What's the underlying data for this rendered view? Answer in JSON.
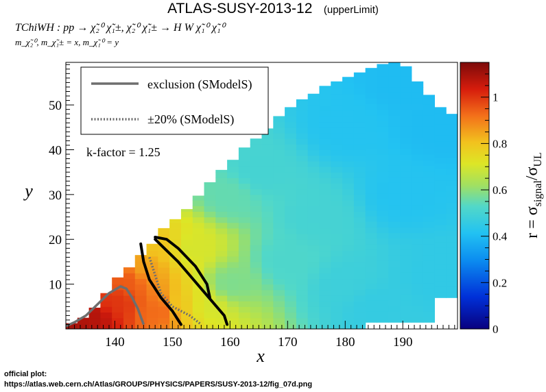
{
  "title": "ATLAS-SUSY-2013-12",
  "subtitle": "(upperLimit)",
  "process": "TChiWH : pp → χ̃₂⁰ χ̃₁±, χ̃₂⁰ χ̃₁± → H W χ̃₁⁰ χ̃₁⁰",
  "mass_constraint": "m_χ̃₂⁰, m_χ̃₁± = x, m_χ̃₁⁰ = y",
  "footer": {
    "label": "official plot:",
    "url": "https://atlas.web.cern.ch/Atlas/GROUPS/PHYSICS/PAPERS/SUSY-2013-12/fig_07d.png"
  },
  "chart_data": {
    "type": "heatmap",
    "xlabel": "x",
    "ylabel": "y",
    "xlim": [
      131.5,
      199.5
    ],
    "ylim": [
      0,
      59.5
    ],
    "xticks": [
      140,
      150,
      160,
      170,
      180,
      190
    ],
    "yticks": [
      10,
      20,
      30,
      40,
      50
    ],
    "colorbar": {
      "label": "r = σ_signal/σ_UL",
      "range": [
        0,
        1.15
      ],
      "ticks": [
        0,
        0.2,
        0.4,
        0.6,
        0.8,
        1
      ]
    },
    "k_factor": "k-factor = 1.25",
    "legend": {
      "placement": "top-left",
      "entries": [
        {
          "label": "exclusion (SModelS)",
          "style": "solid",
          "color": "#6e6e6e"
        },
        {
          "label": "±20% (SModelS)",
          "style": "dotted",
          "color": "#6e6e6e"
        }
      ]
    },
    "grid": false,
    "region_top_edge": [
      [
        131.5,
        0.8
      ],
      [
        134,
        2
      ],
      [
        136,
        4
      ],
      [
        138,
        7
      ],
      [
        140,
        11
      ],
      [
        142,
        13
      ],
      [
        144,
        16
      ],
      [
        146,
        18
      ],
      [
        148,
        22
      ],
      [
        150,
        24
      ],
      [
        152,
        26
      ],
      [
        154,
        29
      ],
      [
        156,
        32
      ],
      [
        158,
        35
      ],
      [
        160,
        37
      ],
      [
        162,
        40
      ],
      [
        164,
        42
      ],
      [
        166,
        44
      ],
      [
        168,
        47
      ],
      [
        170,
        49
      ],
      [
        172,
        51
      ],
      [
        174,
        52
      ],
      [
        176,
        54
      ],
      [
        178,
        55
      ],
      [
        180,
        56
      ],
      [
        182,
        57
      ],
      [
        184,
        58
      ],
      [
        186,
        59
      ],
      [
        188,
        59.5
      ],
      [
        190,
        59.5
      ],
      [
        192,
        56
      ],
      [
        194,
        53
      ],
      [
        196,
        50
      ],
      [
        198,
        48
      ],
      [
        199.5,
        48
      ]
    ],
    "region_bottom_cut": [
      [
        131.5,
        0
      ],
      [
        184,
        0
      ],
      [
        184,
        1.5
      ],
      [
        196,
        1.5
      ],
      [
        196,
        7
      ],
      [
        199.5,
        7
      ]
    ],
    "r_samples": [
      {
        "x": 132,
        "y": 1,
        "r": 1.1
      },
      {
        "x": 136,
        "y": 3,
        "r": 1.08
      },
      {
        "x": 140,
        "y": 6,
        "r": 1.0
      },
      {
        "x": 142,
        "y": 11,
        "r": 0.95
      },
      {
        "x": 145,
        "y": 14,
        "r": 0.85
      },
      {
        "x": 148,
        "y": 18,
        "r": 0.8
      },
      {
        "x": 148,
        "y": 4,
        "r": 0.93
      },
      {
        "x": 152,
        "y": 5,
        "r": 0.78
      },
      {
        "x": 153,
        "y": 18,
        "r": 0.7
      },
      {
        "x": 156,
        "y": 5,
        "r": 0.7
      },
      {
        "x": 160,
        "y": 10,
        "r": 0.58
      },
      {
        "x": 160,
        "y": 30,
        "r": 0.55
      },
      {
        "x": 165,
        "y": 35,
        "r": 0.5
      },
      {
        "x": 170,
        "y": 15,
        "r": 0.52
      },
      {
        "x": 175,
        "y": 25,
        "r": 0.5
      },
      {
        "x": 180,
        "y": 10,
        "r": 0.48
      },
      {
        "x": 180,
        "y": 45,
        "r": 0.42
      },
      {
        "x": 185,
        "y": 5,
        "r": 0.46
      },
      {
        "x": 190,
        "y": 30,
        "r": 0.42
      },
      {
        "x": 190,
        "y": 55,
        "r": 0.4
      },
      {
        "x": 196,
        "y": 45,
        "r": 0.4
      },
      {
        "x": 196,
        "y": 12,
        "r": 0.45
      }
    ],
    "exclusion_curve": [
      [
        131.5,
        0.6
      ],
      [
        133,
        1.5
      ],
      [
        135,
        3
      ],
      [
        137,
        5.5
      ],
      [
        139,
        8
      ],
      [
        141,
        9.5
      ],
      [
        142,
        9
      ],
      [
        143,
        7
      ],
      [
        144,
        4.5
      ],
      [
        145,
        1
      ]
    ],
    "uncertainty_band": [
      [
        146,
        16
      ],
      [
        147,
        12
      ],
      [
        148,
        8
      ],
      [
        150,
        5
      ],
      [
        153,
        3
      ],
      [
        155,
        1
      ]
    ],
    "observed_curves": [
      [
        [
          144.5,
          19
        ],
        [
          145,
          15
        ],
        [
          146,
          11
        ],
        [
          148,
          7
        ],
        [
          150,
          4
        ],
        [
          151.5,
          1
        ]
      ],
      [
        [
          147,
          20.5
        ],
        [
          149,
          20
        ],
        [
          151,
          18
        ],
        [
          154,
          14
        ],
        [
          156,
          10
        ],
        [
          156.5,
          7
        ]
      ],
      [
        [
          147,
          20
        ],
        [
          149,
          17.5
        ],
        [
          151,
          15
        ],
        [
          153,
          12
        ],
        [
          155,
          9
        ],
        [
          157,
          6
        ],
        [
          159,
          3
        ],
        [
          159.5,
          1
        ]
      ]
    ]
  }
}
